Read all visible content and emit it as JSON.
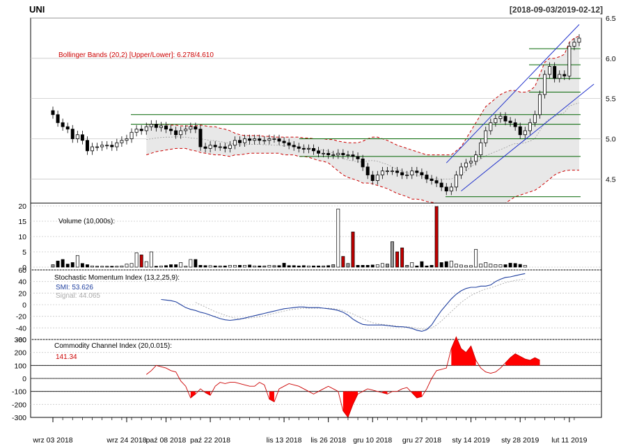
{
  "chart_data": {
    "type": "candlestick",
    "symbol": "UNI",
    "date_range": "[2018-09-03/2019-02-12]",
    "x_tick_labels": [
      "wrz 03 2018",
      "wrz 24 2018",
      "paź 08 2018",
      "paź 22 2018",
      "lis 13 2018",
      "lis 26 2018",
      "gru 10 2018",
      "gru 27 2018",
      "sty 14 2019",
      "sty 28 2019",
      "lut 11 2019"
    ],
    "x_tick_index": [
      0,
      15,
      23,
      32,
      47,
      56,
      65,
      75,
      85,
      95,
      105
    ],
    "colors": {
      "up": "#ffffff",
      "down": "#000000",
      "up_vol_high": "#c00000",
      "bb_band": "#e8e8e8",
      "bb_border": "#cc0000",
      "smi": "#1f3f9f",
      "signal": "#aaaaaa",
      "cci_fill": "#ff0000",
      "trend_line": "#2233cc",
      "support": "#006400"
    },
    "price": {
      "ylim": [
        4.2,
        6.5
      ],
      "ticks": [
        4.5,
        5.0,
        5.5,
        6.0,
        6.5
      ],
      "tick_labels": [
        "4.5",
        "5.0",
        "5.5",
        "6.0",
        "6.5"
      ],
      "bollinger_label": "Bollinger Bands (20,2) [Upper/Lower]: 6.278/4.610",
      "close": [
        5.3,
        5.2,
        5.15,
        5.12,
        5.0,
        5.05,
        4.98,
        4.85,
        4.9,
        4.9,
        4.92,
        4.92,
        4.9,
        4.95,
        4.98,
        5.0,
        5.08,
        5.12,
        5.1,
        5.15,
        5.18,
        5.14,
        5.16,
        5.12,
        5.1,
        5.05,
        5.1,
        5.12,
        5.15,
        5.12,
        4.9,
        4.88,
        4.92,
        4.9,
        4.9,
        4.88,
        4.92,
        4.98,
        4.95,
        5.0,
        4.98,
        5.0,
        4.98,
        4.98,
        5.0,
        5.0,
        4.97,
        4.95,
        4.92,
        4.9,
        4.88,
        4.87,
        4.88,
        4.85,
        4.82,
        4.82,
        4.8,
        4.8,
        4.82,
        4.8,
        4.8,
        4.78,
        4.75,
        4.65,
        4.55,
        4.48,
        4.55,
        4.6,
        4.6,
        4.6,
        4.58,
        4.55,
        4.55,
        4.6,
        4.58,
        4.55,
        4.5,
        4.48,
        4.45,
        4.4,
        4.35,
        4.4,
        4.55,
        4.65,
        4.7,
        4.72,
        4.8,
        4.95,
        5.1,
        5.2,
        5.25,
        5.28,
        5.22,
        5.2,
        5.15,
        5.05,
        5.1,
        5.2,
        5.3,
        5.55,
        5.8,
        5.9,
        5.75,
        5.8,
        5.78,
        6.15,
        6.2,
        6.25
      ],
      "upper": [
        null,
        null,
        null,
        null,
        null,
        null,
        null,
        null,
        null,
        null,
        null,
        null,
        null,
        null,
        null,
        null,
        null,
        null,
        null,
        5.18,
        5.18,
        5.18,
        5.18,
        5.18,
        5.17,
        5.17,
        5.16,
        5.16,
        5.16,
        5.16,
        5.17,
        5.16,
        5.15,
        5.15,
        5.13,
        5.12,
        5.1,
        5.07,
        5.05,
        5.04,
        5.04,
        5.04,
        5.04,
        5.03,
        5.03,
        5.02,
        5.02,
        5.02,
        5.02,
        5.02,
        5.02,
        5.01,
        5.01,
        5.0,
        5.0,
        5.0,
        4.99,
        4.99,
        4.97,
        4.96,
        4.95,
        4.95,
        4.95,
        4.97,
        5.0,
        5.02,
        5.02,
        5.0,
        4.98,
        4.95,
        4.92,
        4.9,
        4.88,
        4.86,
        4.84,
        4.82,
        4.8,
        4.8,
        4.8,
        4.8,
        4.8,
        4.8,
        4.85,
        4.9,
        5.0,
        5.1,
        5.2,
        5.3,
        5.4,
        5.45,
        5.5,
        5.55,
        5.58,
        5.6,
        5.6,
        5.58,
        5.58,
        5.6,
        5.65,
        5.8,
        5.95,
        6.0,
        6.0,
        6.02,
        6.05,
        6.2,
        6.25,
        6.28
      ],
      "lower": [
        null,
        null,
        null,
        null,
        null,
        null,
        null,
        null,
        null,
        null,
        null,
        null,
        null,
        null,
        null,
        null,
        null,
        null,
        null,
        4.8,
        4.82,
        4.84,
        4.85,
        4.86,
        4.87,
        4.88,
        4.88,
        4.88,
        4.86,
        4.85,
        4.83,
        4.82,
        4.81,
        4.8,
        4.8,
        4.79,
        4.78,
        4.8,
        4.8,
        4.81,
        4.82,
        4.82,
        4.82,
        4.82,
        4.82,
        4.82,
        4.82,
        4.8,
        4.8,
        4.8,
        4.78,
        4.78,
        4.77,
        4.75,
        4.73,
        4.72,
        4.7,
        4.65,
        4.6,
        4.55,
        4.52,
        4.5,
        4.48,
        4.45,
        4.45,
        4.44,
        4.42,
        4.4,
        4.38,
        4.35,
        4.32,
        4.3,
        4.28,
        4.25,
        4.25,
        4.24,
        4.22,
        4.21,
        4.2,
        4.2,
        4.2,
        4.2,
        4.2,
        4.2,
        4.2,
        4.2,
        4.2,
        4.2,
        4.18,
        4.18,
        4.18,
        4.18,
        4.2,
        4.24,
        4.28,
        4.3,
        4.32,
        4.34,
        4.36,
        4.4,
        4.45,
        4.5,
        4.55,
        4.58,
        4.6,
        4.61,
        4.61,
        4.61
      ],
      "support_levels": [
        4.28,
        4.78,
        5.0,
        5.18,
        5.3,
        5.58,
        5.75,
        5.92,
        6.12
      ],
      "trend_upper": {
        "from": [
          80,
          4.7
        ],
        "to": [
          107,
          6.42
        ]
      },
      "trend_lower": {
        "from": [
          83,
          4.35
        ],
        "to": [
          110,
          5.68
        ]
      }
    },
    "volume": {
      "label": "Volume (10,000s):",
      "ylim": [
        0,
        20
      ],
      "ticks": [
        0,
        5,
        10,
        15,
        20
      ],
      "tick_labels": [
        "0",
        "5",
        "10",
        "15",
        "20"
      ],
      "values": [
        0.8,
        2.0,
        2.5,
        1.0,
        1.5,
        3.8,
        1.2,
        0.8,
        0.4,
        0.3,
        0.3,
        0.3,
        0.3,
        0.3,
        0.4,
        1.0,
        1.2,
        4.7,
        4.0,
        1.8,
        5.0,
        0.3,
        0.4,
        0.5,
        0.8,
        0.8,
        1.5,
        0.3,
        2.5,
        2.5,
        0.6,
        0.5,
        0.5,
        0.4,
        0.4,
        0.4,
        0.6,
        0.6,
        0.6,
        0.6,
        0.7,
        0.4,
        0.4,
        0.4,
        0.6,
        0.5,
        0.5,
        1.3,
        0.5,
        0.5,
        0.4,
        0.5,
        0.4,
        0.4,
        0.4,
        0.4,
        0.5,
        0.8,
        19.0,
        3.5,
        1.2,
        11.5,
        0.6,
        0.6,
        0.6,
        0.7,
        0.8,
        1.2,
        1.0,
        8.3,
        5.0,
        6.3,
        0.6,
        1.5,
        0.4,
        1.8,
        0.4,
        0.6,
        19.8,
        1.5,
        1.8,
        2.0,
        1.0,
        0.7,
        0.5,
        0.5,
        5.8,
        1.0,
        1.5,
        1.0,
        0.8,
        0.8,
        0.8,
        1.3,
        1.2,
        0.9,
        0.6
      ]
    },
    "smi": {
      "label": "Stochastic Momentum Index (13,2,25,9):",
      "smi_label": "SMI: 53.626",
      "signal_label": "Signal: 44.065",
      "ylim": [
        -60,
        60
      ],
      "ticks": [
        60,
        40,
        20,
        0,
        -20,
        -40,
        -60
      ],
      "tick_labels": [
        "60",
        "40",
        "20",
        "0",
        "-20",
        "-40",
        "-60"
      ],
      "smi": [
        null,
        null,
        null,
        null,
        null,
        null,
        null,
        null,
        null,
        null,
        null,
        null,
        null,
        null,
        null,
        null,
        null,
        null,
        null,
        null,
        null,
        null,
        9,
        8,
        7,
        5,
        0,
        -5,
        -8,
        -10,
        -13,
        -15,
        -18,
        -21,
        -24,
        -26,
        -27,
        -26,
        -25,
        -23,
        -21,
        -19,
        -17,
        -15,
        -13,
        -11,
        -9,
        -7,
        -6,
        -5,
        -4,
        -4,
        -5,
        -5,
        -5,
        -6,
        -7,
        -8,
        -10,
        -13,
        -18,
        -25,
        -30,
        -34,
        -35,
        -35,
        -35,
        -35,
        -36,
        -37,
        -38,
        -38,
        -39,
        -41,
        -44,
        -46,
        -43,
        -35,
        -22,
        -10,
        0,
        10,
        18,
        24,
        28,
        30,
        30,
        32,
        32,
        34,
        40,
        44,
        47,
        48,
        50,
        52,
        53.6
      ],
      "signal": [
        null,
        null,
        null,
        null,
        null,
        null,
        null,
        null,
        null,
        null,
        null,
        null,
        null,
        null,
        null,
        null,
        null,
        null,
        null,
        null,
        null,
        null,
        null,
        null,
        null,
        null,
        null,
        null,
        null,
        4,
        0,
        -4,
        -8,
        -12,
        -15,
        -18,
        -21,
        -23,
        -24,
        -24,
        -23,
        -22,
        -21,
        -19,
        -17,
        -15,
        -13,
        -11,
        -9,
        -8,
        -7,
        -6,
        -6,
        -6,
        -6,
        -6,
        -6,
        -7,
        -8,
        -10,
        -13,
        -16,
        -20,
        -24,
        -28,
        -31,
        -33,
        -34,
        -35,
        -36,
        -37,
        -38,
        -38,
        -39,
        -41,
        -42,
        -42,
        -40,
        -35,
        -28,
        -20,
        -12,
        -4,
        4,
        10,
        16,
        20,
        24,
        27,
        29,
        32,
        35,
        38,
        40,
        42,
        43,
        44
      ]
    },
    "cci": {
      "label": "Commodity Channel Index (20,0.015):",
      "value_label": "141.34",
      "ylim": [
        -300,
        300
      ],
      "ticks": [
        300,
        200,
        100,
        0,
        -100,
        -200,
        -300
      ],
      "tick_labels": [
        "300",
        "200",
        "100",
        "0",
        "-100",
        "-200",
        "-300"
      ],
      "values": [
        null,
        null,
        null,
        null,
        null,
        null,
        null,
        null,
        null,
        null,
        null,
        null,
        null,
        null,
        null,
        null,
        null,
        null,
        null,
        30,
        60,
        100,
        90,
        80,
        60,
        50,
        -20,
        -60,
        -150,
        -120,
        -80,
        -110,
        -130,
        -60,
        -30,
        -40,
        -30,
        -30,
        -40,
        -50,
        -60,
        -60,
        -30,
        -50,
        -160,
        -180,
        -80,
        -60,
        -40,
        -50,
        -60,
        -80,
        -100,
        -120,
        -100,
        -80,
        -60,
        -80,
        -100,
        -250,
        -300,
        -200,
        -120,
        -100,
        -80,
        -90,
        -100,
        -110,
        -120,
        -100,
        -100,
        -80,
        -70,
        -110,
        -150,
        -140,
        -80,
        0,
        60,
        70,
        80,
        230,
        320,
        230,
        200,
        250,
        140,
        80,
        50,
        40,
        50,
        80,
        120,
        160,
        190,
        170,
        150,
        140,
        160,
        141
      ]
    }
  }
}
